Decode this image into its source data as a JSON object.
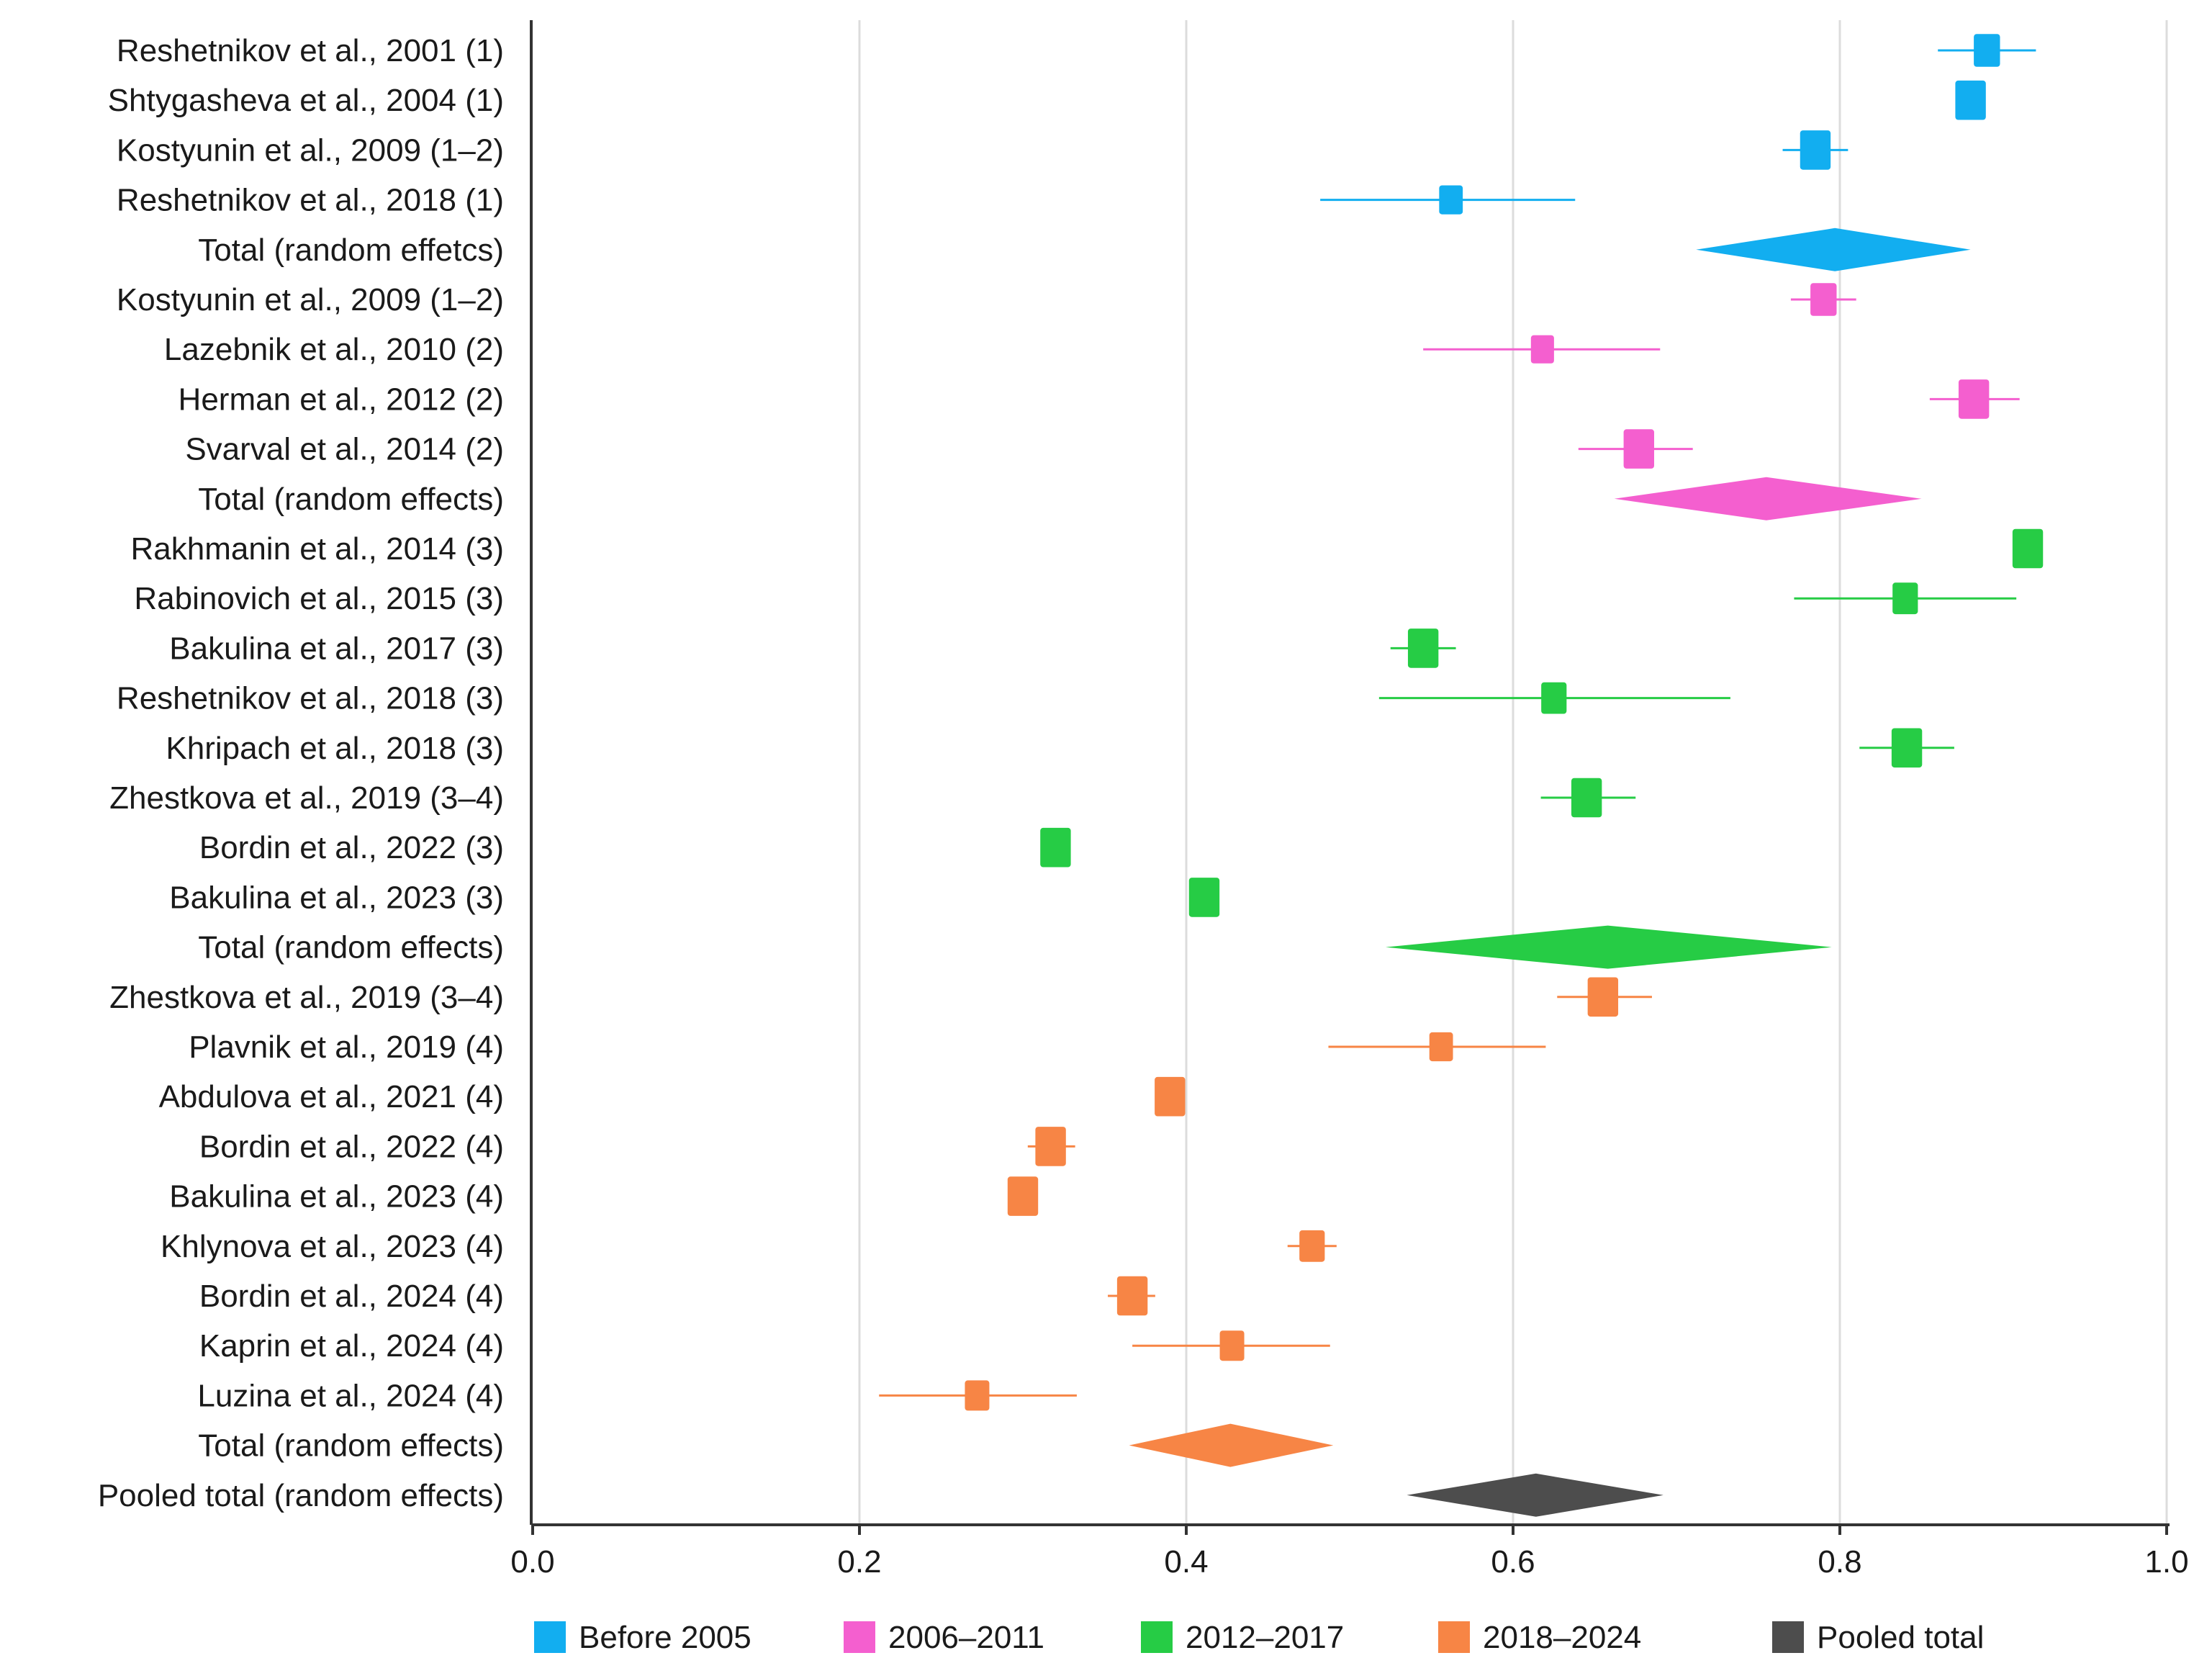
{
  "chart_data": {
    "type": "forest",
    "title": "",
    "xlabel": "",
    "ylabel": "",
    "xlim": [
      0.0,
      1.0
    ],
    "x_ticks": [
      {
        "value": 0.0,
        "label": "0.0"
      },
      {
        "value": 0.2,
        "label": "0.2"
      },
      {
        "value": 0.4,
        "label": "0.4"
      },
      {
        "value": 0.6,
        "label": "0.6"
      },
      {
        "value": 0.8,
        "label": "0.8"
      },
      {
        "value": 1.0,
        "label": "1.0"
      }
    ],
    "grid": true,
    "legend_position": "bottom",
    "groups": [
      {
        "name": "Before 2005",
        "color": "#12aef0"
      },
      {
        "name": "2006–2011",
        "color": "#f45fcf"
      },
      {
        "name": "2012–2017",
        "color": "#26cc45"
      },
      {
        "name": "2018–2024",
        "color": "#f78545"
      },
      {
        "name": "Pooled total",
        "color": "#4d4d4d"
      }
    ],
    "rows": [
      {
        "label": "Reshetnikov et al., 2001 (1)",
        "group": 0,
        "kind": "study",
        "estimate": 0.89,
        "ci_low": 0.86,
        "ci_high": 0.92,
        "weight": 0.6
      },
      {
        "label": "Shtygasheva et al., 2004 (1)",
        "group": 0,
        "kind": "study",
        "estimate": 0.88,
        "ci_low": 0.875,
        "ci_high": 0.885,
        "weight": 0.85
      },
      {
        "label": "Kostyunin et al., 2009 (1–2)",
        "group": 0,
        "kind": "study",
        "estimate": 0.785,
        "ci_low": 0.765,
        "ci_high": 0.805,
        "weight": 0.85
      },
      {
        "label": "Reshetnikov et al., 2018 (1)",
        "group": 0,
        "kind": "study",
        "estimate": 0.562,
        "ci_low": 0.482,
        "ci_high": 0.638,
        "weight": 0.45
      },
      {
        "label": "Total (random effetcs)",
        "group": 0,
        "kind": "total",
        "estimate": 0.797,
        "ci_low": 0.712,
        "ci_high": 0.88
      },
      {
        "label": "Kostyunin et al., 2009 (1–2)",
        "group": 1,
        "kind": "study",
        "estimate": 0.79,
        "ci_low": 0.77,
        "ci_high": 0.81,
        "weight": 0.6
      },
      {
        "label": "Lazebnik et al., 2010 (2)",
        "group": 1,
        "kind": "study",
        "estimate": 0.618,
        "ci_low": 0.545,
        "ci_high": 0.69,
        "weight": 0.42
      },
      {
        "label": "Herman et al., 2012 (2)",
        "group": 1,
        "kind": "study",
        "estimate": 0.882,
        "ci_low": 0.855,
        "ci_high": 0.91,
        "weight": 0.85
      },
      {
        "label": "Svarval et al., 2014 (2)",
        "group": 1,
        "kind": "study",
        "estimate": 0.677,
        "ci_low": 0.64,
        "ci_high": 0.71,
        "weight": 0.85
      },
      {
        "label": "Total (random effects)",
        "group": 1,
        "kind": "total",
        "estimate": 0.755,
        "ci_low": 0.662,
        "ci_high": 0.85
      },
      {
        "label": "Rakhmanin et al., 2014 (3)",
        "group": 2,
        "kind": "study",
        "estimate": 0.915,
        "ci_low": 0.91,
        "ci_high": 0.92,
        "weight": 0.85
      },
      {
        "label": "Rabinovich et al., 2015 (3)",
        "group": 2,
        "kind": "study",
        "estimate": 0.84,
        "ci_low": 0.772,
        "ci_high": 0.908,
        "weight": 0.55
      },
      {
        "label": "Bakulina et al., 2017 (3)",
        "group": 2,
        "kind": "study",
        "estimate": 0.545,
        "ci_low": 0.525,
        "ci_high": 0.565,
        "weight": 0.85
      },
      {
        "label": "Reshetnikov et al., 2018 (3)",
        "group": 2,
        "kind": "study",
        "estimate": 0.625,
        "ci_low": 0.518,
        "ci_high": 0.733,
        "weight": 0.55
      },
      {
        "label": "Khripach et al., 2018 (3)",
        "group": 2,
        "kind": "study",
        "estimate": 0.841,
        "ci_low": 0.812,
        "ci_high": 0.87,
        "weight": 0.85
      },
      {
        "label": "Zhestkova et al., 2019 (3–4)",
        "group": 2,
        "kind": "study",
        "estimate": 0.645,
        "ci_low": 0.617,
        "ci_high": 0.675,
        "weight": 0.85
      },
      {
        "label": "Bordin et al., 2022 (3)",
        "group": 2,
        "kind": "study",
        "estimate": 0.32,
        "ci_low": 0.316,
        "ci_high": 0.324,
        "weight": 0.85
      },
      {
        "label": "Bakulina et al., 2023 (3)",
        "group": 2,
        "kind": "study",
        "estimate": 0.411,
        "ci_low": 0.407,
        "ci_high": 0.415,
        "weight": 0.85
      },
      {
        "label": "Total (random effects)",
        "group": 2,
        "kind": "total",
        "estimate": 0.658,
        "ci_low": 0.522,
        "ci_high": 0.795
      },
      {
        "label": "Zhestkova et al., 2019 (3–4)",
        "group": 3,
        "kind": "study",
        "estimate": 0.655,
        "ci_low": 0.627,
        "ci_high": 0.685,
        "weight": 0.85
      },
      {
        "label": "Plavnik et al., 2019 (4)",
        "group": 3,
        "kind": "study",
        "estimate": 0.556,
        "ci_low": 0.487,
        "ci_high": 0.62,
        "weight": 0.45
      },
      {
        "label": "Abdulova et al., 2021 (4)",
        "group": 3,
        "kind": "study",
        "estimate": 0.39,
        "ci_low": 0.386,
        "ci_high": 0.394,
        "weight": 0.85
      },
      {
        "label": "Bordin et al., 2022 (4)",
        "group": 3,
        "kind": "study",
        "estimate": 0.317,
        "ci_low": 0.303,
        "ci_high": 0.332,
        "weight": 0.85
      },
      {
        "label": "Bakulina et al., 2023 (4)",
        "group": 3,
        "kind": "study",
        "estimate": 0.3,
        "ci_low": 0.296,
        "ci_high": 0.304,
        "weight": 0.85
      },
      {
        "label": "Khlynova et al., 2023 (4)",
        "group": 3,
        "kind": "study",
        "estimate": 0.477,
        "ci_low": 0.462,
        "ci_high": 0.492,
        "weight": 0.55
      },
      {
        "label": "Bordin et al., 2024 (4)",
        "group": 3,
        "kind": "study",
        "estimate": 0.367,
        "ci_low": 0.352,
        "ci_high": 0.381,
        "weight": 0.85
      },
      {
        "label": "Kaprin et al., 2024 (4)",
        "group": 3,
        "kind": "study",
        "estimate": 0.428,
        "ci_low": 0.367,
        "ci_high": 0.488,
        "weight": 0.5
      },
      {
        "label": "Luzina et al., 2024 (4)",
        "group": 3,
        "kind": "study",
        "estimate": 0.272,
        "ci_low": 0.212,
        "ci_high": 0.333,
        "weight": 0.5
      },
      {
        "label": "Total (random effects)",
        "group": 3,
        "kind": "total",
        "estimate": 0.427,
        "ci_low": 0.365,
        "ci_high": 0.49
      },
      {
        "label": "Pooled total (random effects)",
        "group": 4,
        "kind": "total",
        "estimate": 0.614,
        "ci_low": 0.535,
        "ci_high": 0.692
      }
    ]
  }
}
